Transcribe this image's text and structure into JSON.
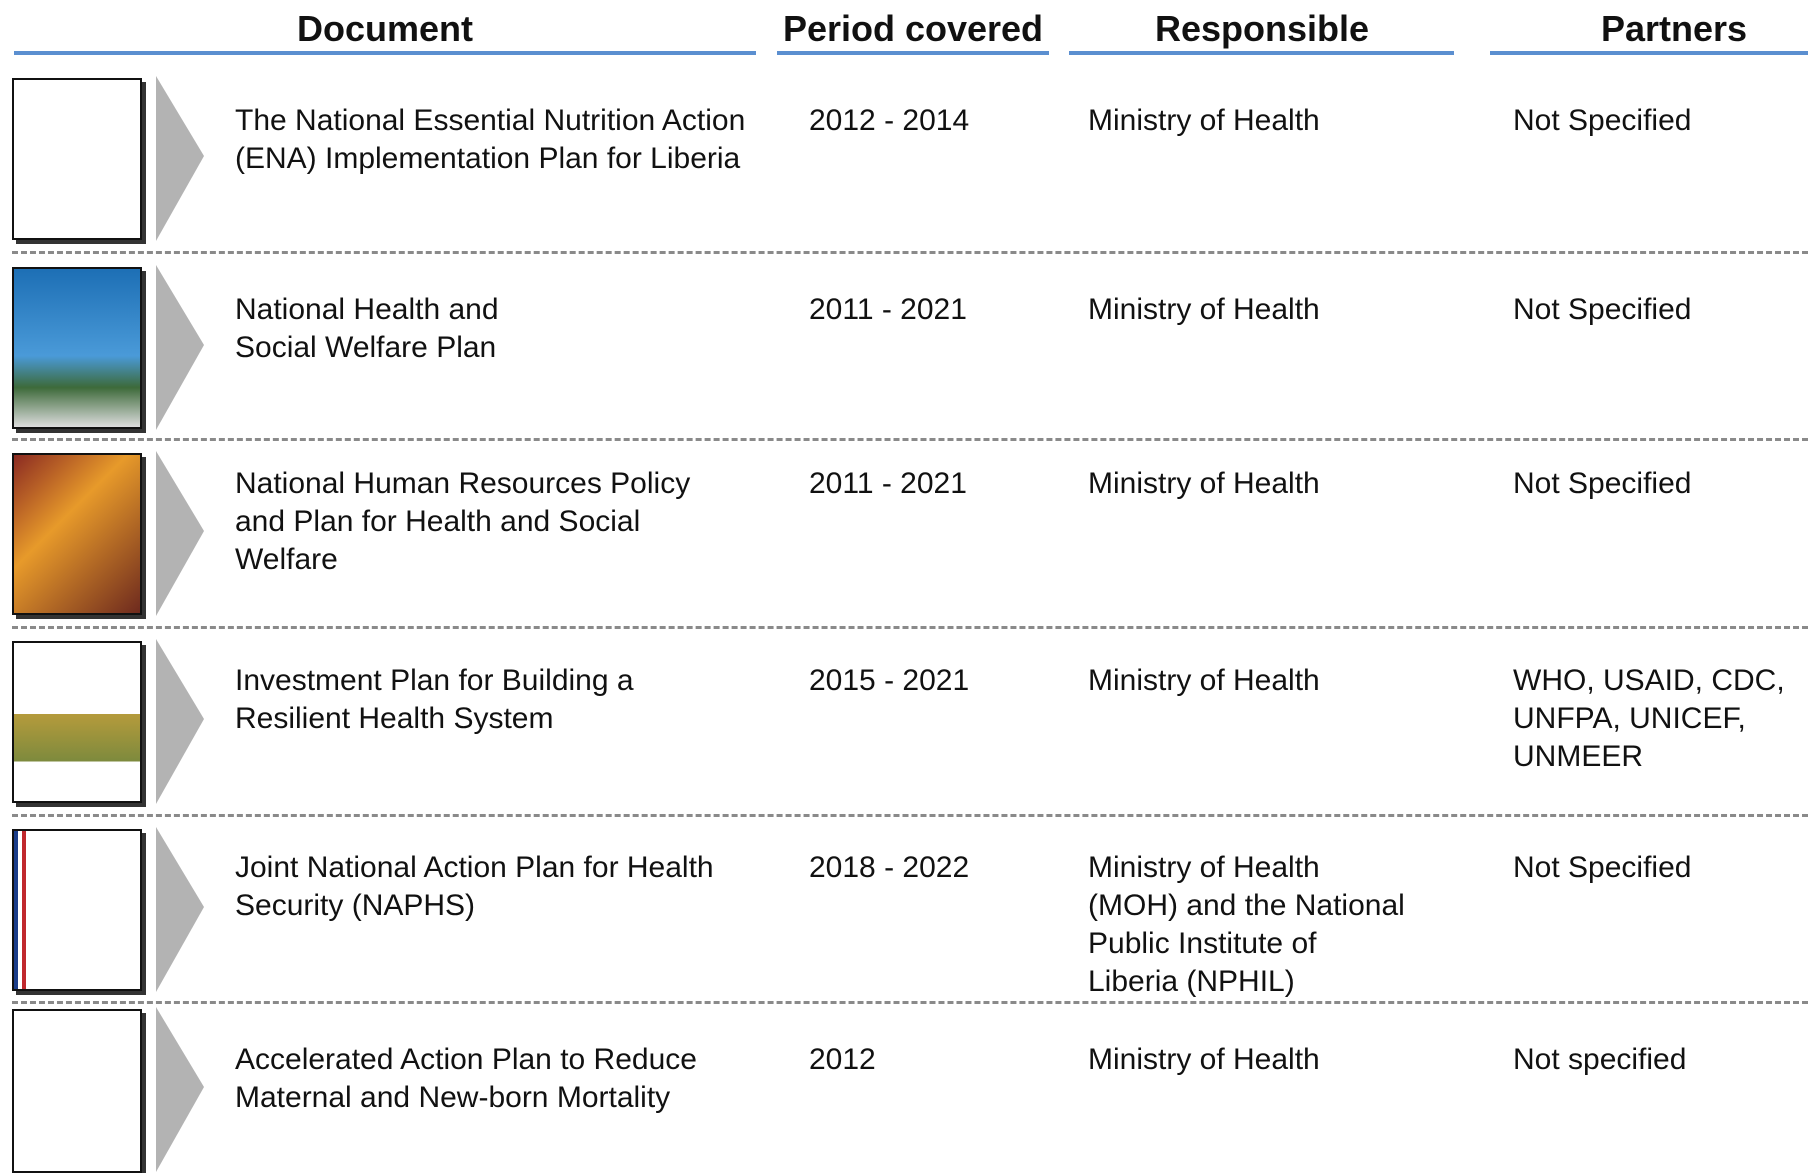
{
  "header": {
    "columns": [
      "Document",
      "Period covered",
      "Responsible",
      "Partners"
    ]
  },
  "table": {
    "rows": [
      {
        "document": [
          "The National Essential Nutrition Action",
          "(ENA) Implementation Plan for Liberia"
        ],
        "period": "2012 - 2014",
        "responsible": [
          "Ministry of Health"
        ],
        "partners": [
          "Not Specified"
        ]
      },
      {
        "document": [
          "National Health and",
          "Social Welfare Plan"
        ],
        "period": "2011 - 2021",
        "responsible": [
          "Ministry of Health"
        ],
        "partners": [
          "Not Specified"
        ]
      },
      {
        "document": [
          "National Human Resources Policy",
          "and Plan for Health and Social",
          "Welfare"
        ],
        "period": "2011 - 2021",
        "responsible": [
          "Ministry of Health"
        ],
        "partners": [
          "Not Specified"
        ]
      },
      {
        "document": [
          "Investment Plan for Building a",
          "Resilient Health System"
        ],
        "period": "2015 - 2021",
        "responsible": [
          "Ministry of Health"
        ],
        "partners": [
          "WHO, USAID, CDC,",
          "UNFPA, UNICEF,",
          "UNMEER"
        ]
      },
      {
        "document": [
          "Joint National Action Plan for Health",
          "Security (NAPHS)"
        ],
        "period": "2018 - 2022",
        "responsible": [
          "Ministry of Health",
          "(MOH) and the National",
          "Public Institute of",
          "Liberia (NPHIL)"
        ],
        "partners": [
          "Not Specified"
        ]
      },
      {
        "document": [
          "Accelerated Action Plan to Reduce",
          "Maternal and New-born Mortality"
        ],
        "period": "2012",
        "responsible": [
          "Ministry of Health"
        ],
        "partners": [
          "Not specified"
        ]
      }
    ]
  }
}
